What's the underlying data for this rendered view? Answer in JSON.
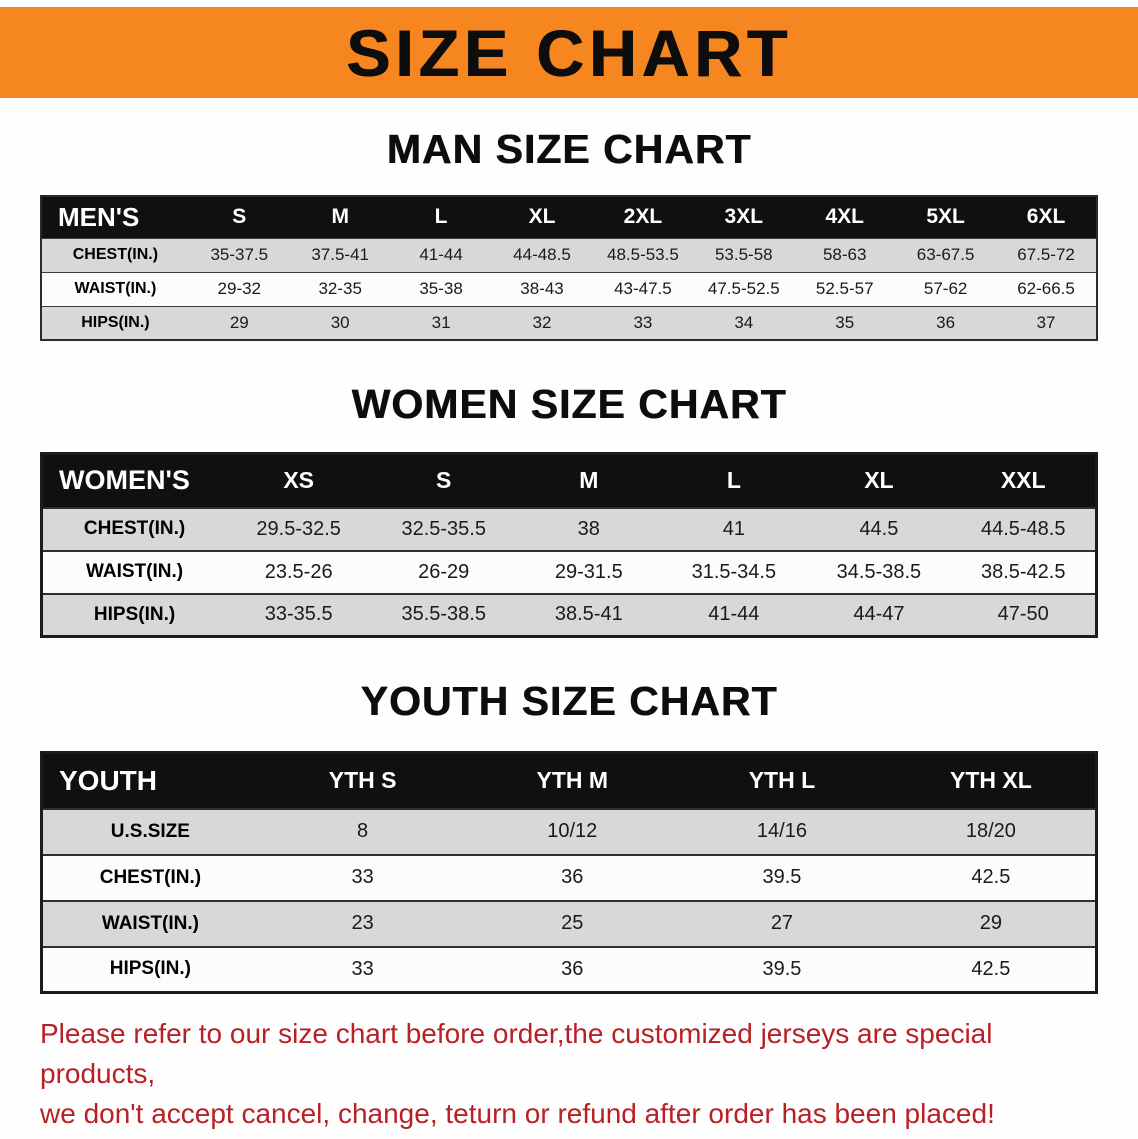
{
  "banner": {
    "title": "SIZE CHART"
  },
  "men": {
    "heading": "MAN SIZE CHART",
    "header": [
      "MEN'S",
      "S",
      "M",
      "L",
      "XL",
      "2XL",
      "3XL",
      "4XL",
      "5XL",
      "6XL"
    ],
    "rows": [
      [
        "CHEST(IN.)",
        "35-37.5",
        "37.5-41",
        "41-44",
        "44-48.5",
        "48.5-53.5",
        "53.5-58",
        "58-63",
        "63-67.5",
        "67.5-72"
      ],
      [
        "WAIST(IN.)",
        "29-32",
        "32-35",
        "35-38",
        "38-43",
        "43-47.5",
        "47.5-52.5",
        "52.5-57",
        "57-62",
        "62-66.5"
      ],
      [
        "HIPS(IN.)",
        "29",
        "30",
        "31",
        "32",
        "33",
        "34",
        "35",
        "36",
        "37"
      ]
    ]
  },
  "women": {
    "heading": "WOMEN SIZE CHART",
    "header": [
      "WOMEN'S",
      "XS",
      "S",
      "M",
      "L",
      "XL",
      "XXL"
    ],
    "rows": [
      [
        "CHEST(IN.)",
        "29.5-32.5",
        "32.5-35.5",
        "38",
        "41",
        "44.5",
        "44.5-48.5"
      ],
      [
        "WAIST(IN.)",
        "23.5-26",
        "26-29",
        "29-31.5",
        "31.5-34.5",
        "34.5-38.5",
        "38.5-42.5"
      ],
      [
        "HIPS(IN.)",
        "33-35.5",
        "35.5-38.5",
        "38.5-41",
        "41-44",
        "44-47",
        "47-50"
      ]
    ]
  },
  "youth": {
    "heading": "YOUTH SIZE CHART",
    "header": [
      "YOUTH",
      "YTH S",
      "YTH M",
      "YTH L",
      "YTH XL"
    ],
    "rows": [
      [
        "U.S.SIZE",
        "8",
        "10/12",
        "14/16",
        "18/20"
      ],
      [
        "CHEST(IN.)",
        "33",
        "36",
        "39.5",
        "42.5"
      ],
      [
        "WAIST(IN.)",
        "23",
        "25",
        "27",
        "29"
      ],
      [
        "HIPS(IN.)",
        "33",
        "36",
        "39.5",
        "42.5"
      ]
    ]
  },
  "disclaimer": {
    "line1": "Please refer to our size chart before order,the customized jerseys are special products,",
    "line2": "we don't accept cancel, change, teturn or refund after order has been placed!"
  },
  "colors": {
    "banner_bg": "#F6861F",
    "header_bg": "#101010",
    "row_shaded": "#D8D8D8",
    "disclaimer_red": "#B92025"
  }
}
